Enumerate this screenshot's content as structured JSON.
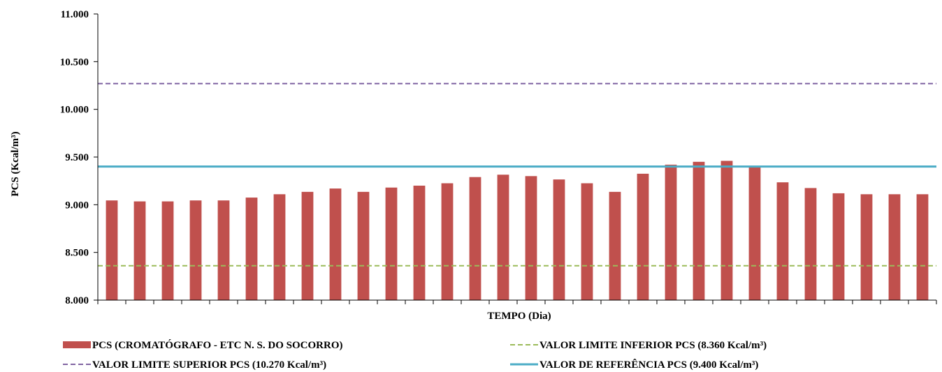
{
  "chart_data": {
    "type": "bar",
    "xlabel": "TEMPO (Dia)",
    "ylabel": "PCS (Kcal/m³)",
    "ylim": [
      8000,
      11000
    ],
    "y_ticks": [
      {
        "value": 8000,
        "label": "8.000"
      },
      {
        "value": 8500,
        "label": "8.500"
      },
      {
        "value": 9000,
        "label": "9.000"
      },
      {
        "value": 9500,
        "label": "9.500"
      },
      {
        "value": 10000,
        "label": "10.000"
      },
      {
        "value": 10500,
        "label": "10.500"
      },
      {
        "value": 11000,
        "label": "11.000"
      }
    ],
    "grid": false,
    "legend_position": "bottom",
    "series": [
      {
        "name": "PCS (CROMATÓGRAFO - ETC N. S. DO SOCORRO)",
        "kind": "bar",
        "color": "#c0504d",
        "values": [
          9045,
          9035,
          9035,
          9045,
          9045,
          9075,
          9110,
          9135,
          9170,
          9135,
          9180,
          9200,
          9225,
          9290,
          9315,
          9300,
          9265,
          9225,
          9135,
          9325,
          9420,
          9450,
          9460,
          9405,
          9235,
          9175,
          9120,
          9110,
          9110,
          9110
        ]
      },
      {
        "name": "VALOR LIMITE INFERIOR PCS (8.360 Kcal/m³)",
        "kind": "reference-line",
        "style": "dashed",
        "color": "#9bbb59",
        "value": 8360
      },
      {
        "name": "VALOR LIMITE SUPERIOR PCS (10.270 Kcal/m³)",
        "kind": "reference-line",
        "style": "dashed",
        "color": "#8064a2",
        "value": 10270
      },
      {
        "name": "VALOR DE REFERÊNCIA PCS (9.400 Kcal/m³)",
        "kind": "reference-line",
        "style": "solid",
        "color": "#4bacc6",
        "value": 9400
      }
    ]
  }
}
